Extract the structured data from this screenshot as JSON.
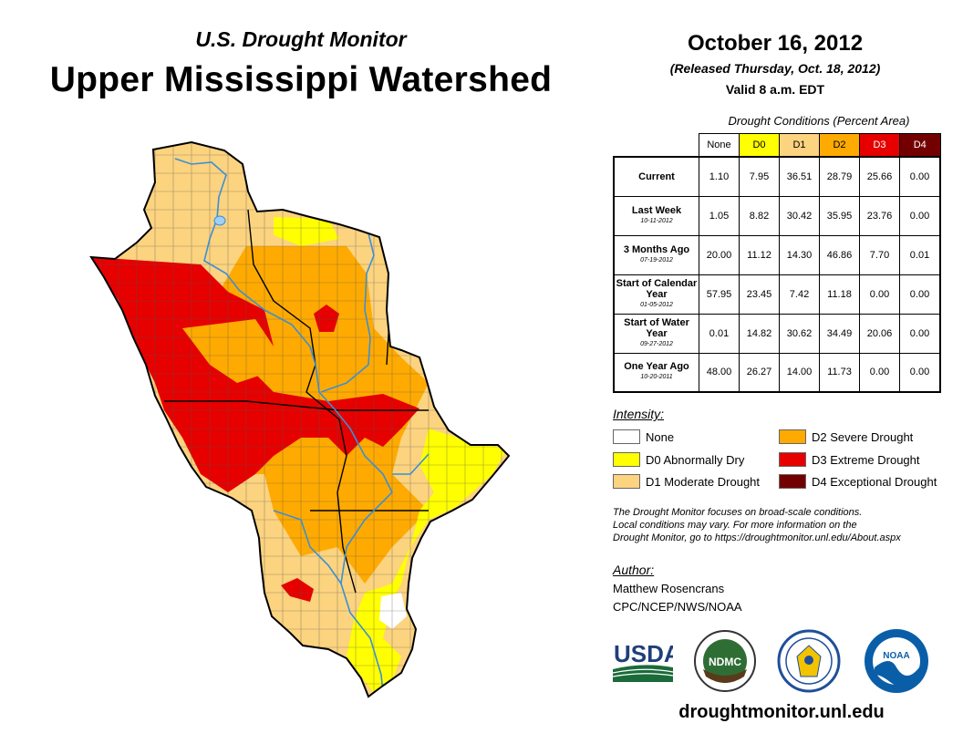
{
  "header": {
    "subtitle": "U.S. Drought Monitor",
    "title": "Upper Mississippi Watershed",
    "date": "October 16, 2012",
    "released": "(Released Thursday, Oct. 18, 2012)",
    "valid": "Valid 8 a.m. EDT"
  },
  "table": {
    "caption": "Drought Conditions (Percent Area)",
    "columns": [
      "None",
      "D0",
      "D1",
      "D2",
      "D3",
      "D4"
    ],
    "column_colors": [
      "#ffffff",
      "#ffff00",
      "#fcd37f",
      "#ffaa00",
      "#e60000",
      "#730000"
    ],
    "rows": [
      {
        "label": "Current",
        "date": "",
        "values": [
          "1.10",
          "7.95",
          "36.51",
          "28.79",
          "25.66",
          "0.00"
        ]
      },
      {
        "label": "Last Week",
        "date": "10-11-2012",
        "values": [
          "1.05",
          "8.82",
          "30.42",
          "35.95",
          "23.76",
          "0.00"
        ]
      },
      {
        "label": "3 Months Ago",
        "date": "07-19-2012",
        "values": [
          "20.00",
          "11.12",
          "14.30",
          "46.86",
          "7.70",
          "0.01"
        ]
      },
      {
        "label": "Start of Calendar Year",
        "date": "01-05-2012",
        "values": [
          "57.95",
          "23.45",
          "7.42",
          "11.18",
          "0.00",
          "0.00"
        ]
      },
      {
        "label": "Start of Water Year",
        "date": "09-27-2012",
        "values": [
          "0.01",
          "14.82",
          "30.62",
          "34.49",
          "20.06",
          "0.00"
        ]
      },
      {
        "label": "One Year Ago",
        "date": "10-20-2011",
        "values": [
          "48.00",
          "26.27",
          "14.00",
          "11.73",
          "0.00",
          "0.00"
        ]
      }
    ]
  },
  "legend": {
    "title": "Intensity:",
    "items": [
      {
        "label": "None",
        "color": "#ffffff"
      },
      {
        "label": "D0 Abnormally Dry",
        "color": "#ffff00"
      },
      {
        "label": "D1 Moderate Drought",
        "color": "#fcd37f"
      },
      {
        "label": "D2 Severe Drought",
        "color": "#ffaa00"
      },
      {
        "label": "D3 Extreme Drought",
        "color": "#e60000"
      },
      {
        "label": "D4 Exceptional Drought",
        "color": "#730000"
      }
    ]
  },
  "note": {
    "line1": "The Drought Monitor focuses on broad-scale conditions.",
    "line2": "Local conditions may vary. For more information on the",
    "line3": "Drought Monitor, go to https://droughtmonitor.unl.edu/About.aspx"
  },
  "author": {
    "label": "Author:",
    "name": "Matthew Rosencrans",
    "org": "CPC/NCEP/NWS/NOAA"
  },
  "logos": {
    "usda": "USDA",
    "ndmc": "NDMC",
    "noaa": "NOAA"
  },
  "website": "droughtmonitor.unl.edu"
}
